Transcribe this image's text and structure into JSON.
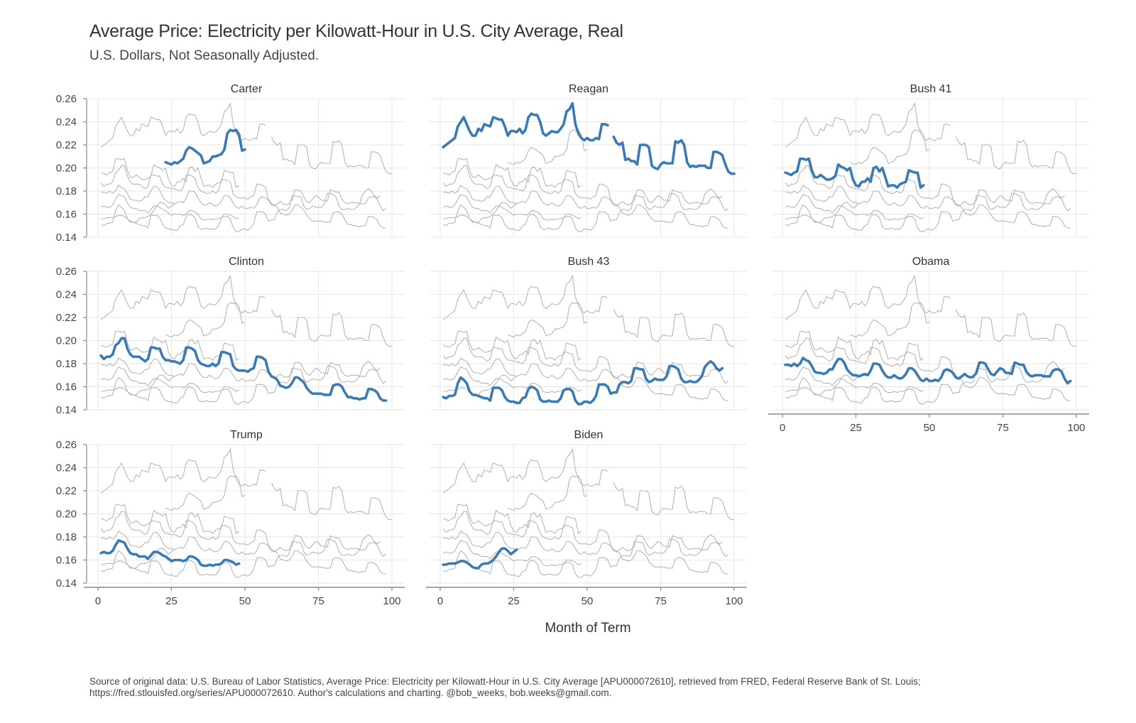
{
  "title": "Average Price: Electricity per Kilowatt-Hour in U.S. City Average, Real",
  "subtitle": "U.S. Dollars, Not Seasonally Adjusted.",
  "source": "Source of original data: U.S. Bureau of Labor Statistics, Average Price: Electricity per Kilowatt-Hour in U.S. City Average [APU000072610], retrieved from FRED, Federal Reserve Bank of St. Louis; https://fred.stlouisfed.org/series/APU000072610. Author's calculations and charting. @bob_weeks, bob.weeks@gmail.com.",
  "colors": {
    "highlight": "#3a7ab5",
    "context": "#b5b5b5",
    "grid": "#e6e6e6",
    "axis": "#888888"
  },
  "chart_data": {
    "type": "line",
    "xlabel": "Month of Term",
    "ylabel": "",
    "xlim": [
      0,
      100
    ],
    "ylim": [
      0.14,
      0.26
    ],
    "x_ticks": [
      0,
      25,
      50,
      75,
      100
    ],
    "y_ticks": [
      0.14,
      0.16,
      0.18,
      0.2,
      0.22,
      0.24,
      0.26
    ],
    "x_tick_labels": [
      "0",
      "25",
      "50",
      "75",
      "100"
    ],
    "y_tick_labels": [
      "0.14",
      "0.16",
      "0.18",
      "0.20",
      "0.22",
      "0.24",
      "0.26"
    ],
    "grid": true,
    "series": [
      {
        "name": "Carter",
        "start": 23,
        "values": [
          0.205,
          0.204,
          0.203,
          0.205,
          0.204,
          0.206,
          0.208,
          0.215,
          0.218,
          0.217,
          0.215,
          0.213,
          0.211,
          0.204,
          0.205,
          0.206,
          0.21,
          0.21,
          0.211,
          0.212,
          0.216,
          0.23,
          0.233,
          0.232,
          0.233,
          0.229,
          0.215,
          0.216
        ]
      },
      {
        "name": "Reagan",
        "start": 1,
        "values": [
          0.218,
          0.22,
          0.222,
          0.224,
          0.226,
          0.236,
          0.24,
          0.244,
          0.238,
          0.232,
          0.228,
          0.228,
          0.234,
          0.232,
          0.238,
          0.237,
          0.236,
          0.244,
          0.243,
          0.242,
          0.242,
          0.236,
          0.228,
          0.232,
          0.232,
          0.231,
          0.234,
          0.23,
          0.233,
          0.244,
          0.247,
          0.246,
          0.246,
          0.24,
          0.23,
          0.228,
          0.23,
          0.232,
          0.231,
          0.231,
          0.234,
          0.238,
          0.249,
          0.251,
          0.256,
          0.238,
          0.23,
          0.226,
          0.224,
          0.226,
          0.224,
          0.224,
          0.226,
          0.225,
          0.238,
          0.238,
          0.237,
          null,
          0.227,
          0.222,
          0.22,
          0.222,
          0.207,
          0.208,
          0.206,
          0.206,
          0.203,
          0.22,
          0.22,
          0.22,
          0.218,
          0.202,
          0.2,
          0.199,
          0.203,
          0.205,
          0.204,
          0.204,
          0.204,
          0.223,
          0.222,
          0.224,
          0.22,
          0.205,
          0.201,
          0.202,
          0.201,
          0.202,
          0.202,
          0.202,
          0.2,
          0.2,
          0.214,
          0.214,
          0.213,
          0.211,
          0.203,
          0.197,
          0.195,
          0.195
        ]
      },
      {
        "name": "Bush 41",
        "start": 1,
        "values": [
          0.196,
          0.195,
          0.194,
          0.196,
          0.197,
          0.208,
          0.208,
          0.207,
          0.208,
          0.198,
          0.192,
          0.192,
          0.194,
          0.192,
          0.19,
          0.19,
          0.191,
          0.193,
          0.203,
          0.201,
          0.2,
          0.198,
          0.2,
          0.19,
          0.185,
          0.184,
          0.188,
          0.188,
          0.191,
          0.188,
          0.2,
          0.201,
          0.197,
          0.2,
          0.192,
          0.184,
          0.185,
          0.185,
          0.183,
          0.186,
          0.187,
          0.188,
          0.198,
          0.197,
          0.196,
          0.196,
          0.183,
          0.185
        ]
      },
      {
        "name": "Clinton",
        "start": 1,
        "values": [
          0.187,
          0.184,
          0.186,
          0.186,
          0.188,
          0.196,
          0.198,
          0.202,
          0.202,
          0.193,
          0.188,
          0.186,
          0.186,
          0.186,
          0.184,
          0.182,
          0.184,
          0.194,
          0.194,
          0.193,
          0.193,
          0.186,
          0.183,
          0.183,
          0.182,
          0.182,
          0.181,
          0.18,
          0.183,
          0.194,
          0.194,
          0.193,
          0.191,
          0.183,
          0.18,
          0.179,
          0.178,
          0.178,
          0.18,
          0.178,
          0.18,
          0.19,
          0.19,
          0.189,
          0.188,
          0.178,
          0.175,
          0.174,
          0.174,
          0.174,
          0.173,
          0.175,
          0.176,
          0.186,
          0.186,
          0.185,
          0.183,
          0.173,
          0.169,
          0.168,
          0.166,
          0.161,
          0.16,
          0.159,
          0.16,
          0.163,
          0.168,
          0.168,
          0.166,
          0.164,
          0.159,
          0.156,
          0.154,
          0.154,
          0.154,
          0.154,
          0.153,
          0.153,
          0.153,
          0.161,
          0.162,
          0.162,
          0.16,
          0.155,
          0.151,
          0.151,
          0.15,
          0.15,
          0.149,
          0.15,
          0.15,
          0.158,
          0.158,
          0.157,
          0.155,
          0.15,
          0.148,
          0.148
        ]
      },
      {
        "name": "Bush 43",
        "start": 1,
        "values": [
          0.151,
          0.15,
          0.152,
          0.152,
          0.153,
          0.163,
          0.168,
          0.166,
          0.163,
          0.156,
          0.153,
          0.153,
          0.152,
          0.151,
          0.15,
          0.15,
          0.148,
          0.159,
          0.159,
          0.159,
          0.157,
          0.151,
          0.148,
          0.147,
          0.147,
          0.146,
          0.146,
          0.15,
          0.151,
          0.158,
          0.16,
          0.159,
          0.157,
          0.149,
          0.147,
          0.147,
          0.148,
          0.147,
          0.147,
          0.147,
          0.15,
          0.157,
          0.158,
          0.158,
          0.156,
          0.148,
          0.145,
          0.145,
          0.147,
          0.147,
          0.146,
          0.148,
          0.152,
          0.162,
          0.162,
          0.162,
          0.16,
          0.154,
          0.155,
          0.155,
          0.162,
          0.164,
          0.164,
          0.163,
          0.165,
          0.176,
          0.176,
          0.175,
          0.175,
          0.167,
          0.164,
          0.165,
          0.167,
          0.166,
          0.166,
          0.166,
          0.169,
          0.178,
          0.178,
          0.177,
          0.175,
          0.167,
          0.164,
          0.164,
          0.165,
          0.164,
          0.164,
          0.166,
          0.169,
          0.177,
          0.18,
          0.182,
          0.18,
          0.176,
          0.174,
          0.176
        ]
      },
      {
        "name": "Obama",
        "start": 1,
        "values": [
          0.179,
          0.179,
          0.178,
          0.18,
          0.178,
          0.18,
          0.185,
          0.183,
          0.182,
          0.178,
          0.173,
          0.172,
          0.172,
          0.171,
          0.172,
          0.175,
          0.175,
          0.18,
          0.184,
          0.184,
          0.181,
          0.175,
          0.172,
          0.17,
          0.17,
          0.169,
          0.17,
          0.171,
          0.17,
          0.174,
          0.18,
          0.18,
          0.179,
          0.174,
          0.17,
          0.168,
          0.168,
          0.17,
          0.168,
          0.167,
          0.168,
          0.171,
          0.176,
          0.176,
          0.174,
          0.17,
          0.166,
          0.165,
          0.167,
          0.165,
          0.165,
          0.166,
          0.165,
          0.168,
          0.174,
          0.175,
          0.174,
          0.172,
          0.168,
          0.167,
          0.169,
          0.171,
          0.169,
          0.168,
          0.169,
          0.172,
          0.181,
          0.181,
          0.18,
          0.175,
          0.171,
          0.17,
          0.173,
          0.176,
          0.175,
          0.172,
          0.172,
          0.171,
          0.181,
          0.18,
          0.179,
          0.179,
          0.173,
          0.17,
          0.169,
          0.17,
          0.17,
          0.17,
          0.169,
          0.169,
          0.169,
          0.174,
          0.175,
          0.175,
          0.173,
          0.167,
          0.163,
          0.165
        ]
      },
      {
        "name": "Trump",
        "start": 1,
        "values": [
          0.166,
          0.167,
          0.166,
          0.166,
          0.168,
          0.173,
          0.177,
          0.176,
          0.175,
          0.17,
          0.166,
          0.165,
          0.165,
          0.163,
          0.163,
          0.163,
          0.161,
          0.164,
          0.167,
          0.167,
          0.166,
          0.164,
          0.163,
          0.161,
          0.159,
          0.16,
          0.16,
          0.16,
          0.159,
          0.16,
          0.163,
          0.163,
          0.162,
          0.16,
          0.156,
          0.155,
          0.155,
          0.156,
          0.155,
          0.156,
          0.156,
          0.157,
          0.16,
          0.16,
          0.159,
          0.158,
          0.156,
          0.157
        ]
      },
      {
        "name": "Biden",
        "start": 1,
        "values": [
          0.156,
          0.156,
          0.157,
          0.157,
          0.157,
          0.158,
          0.159,
          0.159,
          0.158,
          0.156,
          0.154,
          0.153,
          0.153,
          0.156,
          0.157,
          0.157,
          0.158,
          0.16,
          0.163,
          0.167,
          0.17,
          0.17,
          0.168,
          0.165,
          0.167,
          0.169
        ]
      }
    ]
  }
}
